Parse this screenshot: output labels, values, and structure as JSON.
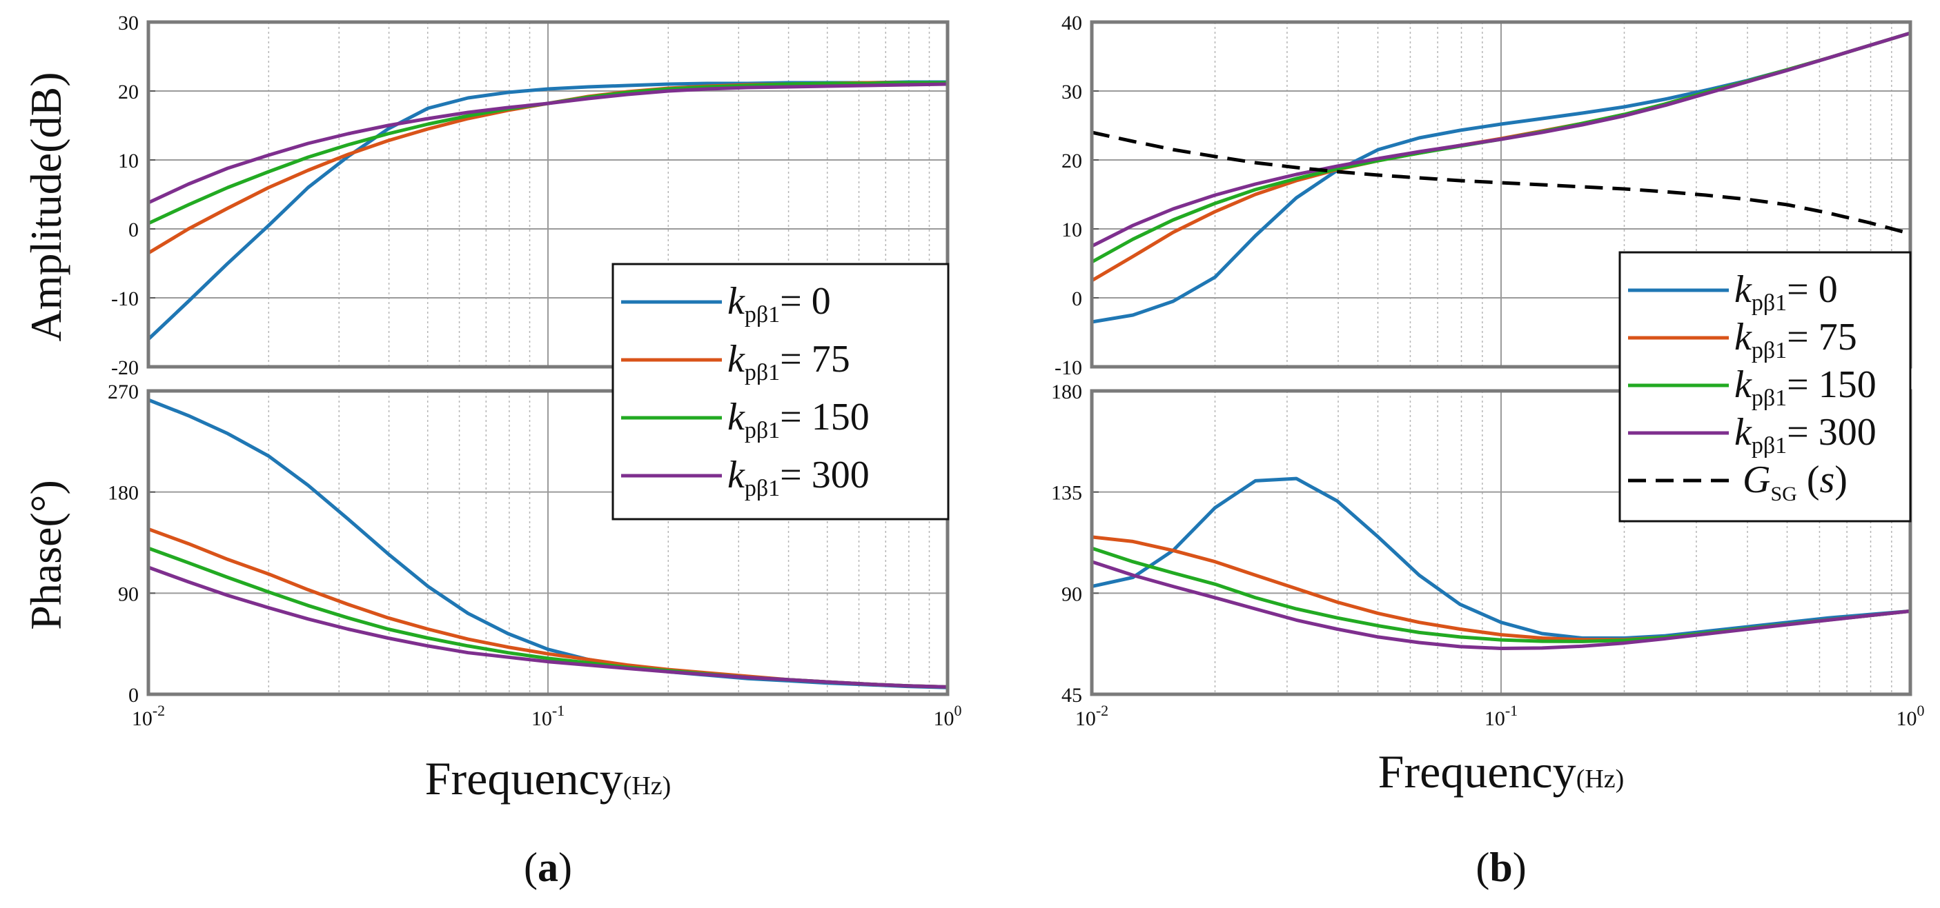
{
  "chart_data": [
    {
      "type": "line",
      "panel_label": "a",
      "xscale": "log",
      "xlim": [
        0.01,
        1
      ],
      "x_tick_labels": [
        {
          "base": "10",
          "exp": "-2"
        },
        {
          "base": "10",
          "exp": "-1"
        },
        {
          "base": "10",
          "exp": "0"
        }
      ],
      "xlabel": {
        "main": "Frequency",
        "unit": "(Hz)"
      },
      "x": [
        0.01,
        0.0126,
        0.0158,
        0.02,
        0.0251,
        0.0316,
        0.0398,
        0.0501,
        0.0631,
        0.0794,
        0.1,
        0.126,
        0.158,
        0.2,
        0.251,
        0.316,
        0.398,
        0.501,
        0.631,
        0.794,
        1.0
      ],
      "amplitude": {
        "ylabel": "Amplitude(dB)",
        "ylim": [
          -20,
          30
        ],
        "y_tick_labels": [
          "-20",
          "-10",
          "0",
          "10",
          "20",
          "30"
        ],
        "series": [
          {
            "name": "0",
            "color": "#1f77b4",
            "values": [
              -16,
              -10.5,
              -5,
              0.5,
              6,
              10.5,
              14.5,
              17.5,
              19,
              19.8,
              20.3,
              20.6,
              20.8,
              21,
              21.1,
              21.1,
              21.2,
              21.2,
              21.2,
              21.3,
              21.3
            ]
          },
          {
            "name": "75",
            "color": "#d95319",
            "values": [
              -3.5,
              0,
              3,
              6,
              8.5,
              10.8,
              12.8,
              14.5,
              16,
              17.2,
              18.2,
              19.2,
              19.9,
              20.4,
              20.7,
              20.9,
              21,
              21.1,
              21.2,
              21.2,
              21.2
            ]
          },
          {
            "name": "150",
            "color": "#22aa22",
            "values": [
              0.8,
              3.5,
              6,
              8.3,
              10.4,
              12.2,
              13.8,
              15.2,
              16.4,
              17.4,
              18.2,
              19.1,
              19.8,
              20.3,
              20.6,
              20.8,
              21,
              21.1,
              21.1,
              21.2,
              21.2
            ]
          },
          {
            "name": "300",
            "color": "#7e2f8e",
            "values": [
              3.8,
              6.5,
              8.8,
              10.7,
              12.4,
              13.8,
              15,
              16,
              16.9,
              17.6,
              18.2,
              18.9,
              19.5,
              20,
              20.3,
              20.5,
              20.6,
              20.7,
              20.8,
              20.9,
              21
            ]
          }
        ]
      },
      "phase": {
        "ylabel": "Phase(°)",
        "ylim": [
          0,
          270
        ],
        "y_tick_labels": [
          "0",
          "90",
          "180",
          "270"
        ],
        "series": [
          {
            "name": "0",
            "color": "#1f77b4",
            "values": [
              262,
              248,
              232,
              212,
              186,
              156,
              125,
              96,
              72,
              54,
              40,
              31,
              25,
              20,
              17,
              14,
              12,
              10,
              8.5,
              7,
              6
            ]
          },
          {
            "name": "75",
            "color": "#d95319",
            "values": [
              147,
              134,
              120,
              107,
              93,
              80,
              68,
              58,
              49,
              42,
              36,
              31,
              26,
              22,
              19,
              16,
              13,
              11,
              9,
              7.5,
              6.5
            ]
          },
          {
            "name": "150",
            "color": "#22aa22",
            "values": [
              130,
              117,
              104,
              91,
              79,
              68,
              58,
              50,
              43,
              37,
              32,
              28,
              24,
              21,
              18,
              15,
              13,
              11,
              9,
              7.5,
              6.5
            ]
          },
          {
            "name": "300",
            "color": "#7e2f8e",
            "values": [
              113,
              100,
              88,
              77,
              67,
              58,
              50,
              43,
              37,
              33,
              29,
              26,
              23,
              20,
              17.5,
              15,
              13,
              11,
              9,
              7.5,
              6.5
            ]
          }
        ]
      },
      "legend": {
        "placement": "right",
        "symbol": "k",
        "subscript": "pβ1",
        "entries": [
          "= 0",
          "= 75",
          "= 150",
          "= 300"
        ]
      }
    },
    {
      "type": "line",
      "panel_label": "b",
      "xscale": "log",
      "xlim": [
        0.01,
        1
      ],
      "x_tick_labels": [
        {
          "base": "10",
          "exp": "-2"
        },
        {
          "base": "10",
          "exp": "-1"
        },
        {
          "base": "10",
          "exp": "0"
        }
      ],
      "xlabel": {
        "main": "Frequency",
        "unit": "(Hz)"
      },
      "x": [
        0.01,
        0.0126,
        0.0158,
        0.02,
        0.0251,
        0.0316,
        0.0398,
        0.0501,
        0.0631,
        0.0794,
        0.1,
        0.126,
        0.158,
        0.2,
        0.251,
        0.316,
        0.398,
        0.501,
        0.631,
        0.794,
        1.0
      ],
      "amplitude": {
        "ylabel": "",
        "ylim": [
          -10,
          40
        ],
        "y_tick_labels": [
          "-10",
          "0",
          "10",
          "20",
          "30",
          "40"
        ],
        "series": [
          {
            "name": "0",
            "color": "#1f77b4",
            "values": [
              -3.5,
              -2.5,
              -0.5,
              3,
              9,
              14.5,
              18.5,
              21.5,
              23.2,
              24.3,
              25.2,
              26,
              26.8,
              27.7,
              28.8,
              30.1,
              31.5,
              33.1,
              34.8,
              36.6,
              38.4
            ]
          },
          {
            "name": "75",
            "color": "#d95319",
            "values": [
              2.5,
              6,
              9.5,
              12.5,
              15,
              17,
              18.6,
              19.9,
              21,
              22.1,
              23.1,
              24.2,
              25.3,
              26.6,
              28.1,
              29.8,
              31.4,
              33.1,
              34.8,
              36.6,
              38.4
            ]
          },
          {
            "name": "150",
            "color": "#22aa22",
            "values": [
              5.2,
              8.5,
              11.3,
              13.7,
              15.7,
              17.3,
              18.7,
              19.9,
              21,
              22,
              23,
              24.1,
              25.3,
              26.6,
              28.1,
              29.8,
              31.4,
              33.1,
              34.8,
              36.6,
              38.4
            ]
          },
          {
            "name": "300",
            "color": "#7e2f8e",
            "values": [
              7.5,
              10.5,
              12.9,
              14.9,
              16.5,
              17.9,
              19.1,
              20.2,
              21.2,
              22.1,
              23,
              24,
              25.1,
              26.4,
              27.9,
              29.6,
              31.3,
              33,
              34.8,
              36.6,
              38.4
            ]
          },
          {
            "name": "GSG(s)",
            "color": "#000000",
            "dashed": true,
            "values": [
              24,
              22.7,
              21.5,
              20.5,
              19.6,
              18.9,
              18.3,
              17.8,
              17.4,
              17,
              16.7,
              16.4,
              16.1,
              15.8,
              15.4,
              14.9,
              14.3,
              13.5,
              12.3,
              10.9,
              9.3
            ]
          }
        ]
      },
      "phase": {
        "ylabel": "",
        "ylim": [
          45,
          180
        ],
        "y_tick_labels": [
          "45",
          "90",
          "135",
          "180"
        ],
        "series": [
          {
            "name": "0",
            "color": "#1f77b4",
            "values": [
              93,
              97,
              109,
              128,
              140,
              141,
              131,
              115,
              98,
              85,
              77,
              72,
              70,
              70,
              71,
              73,
              75,
              77,
              79,
              80.5,
              82
            ]
          },
          {
            "name": "75",
            "color": "#d95319",
            "values": [
              115,
              113,
              109,
              104,
              98,
              92,
              86,
              81,
              77,
              74,
              71.5,
              70,
              69.3,
              69.3,
              70.3,
              72.2,
              74.2,
              76.2,
              78.1,
              80,
              82
            ]
          },
          {
            "name": "150",
            "color": "#22aa22",
            "values": [
              110,
              104,
              99,
              94,
              88,
              83,
              79,
              75.5,
              72.5,
              70.5,
              69.2,
              68.6,
              68.5,
              69,
              70.3,
              72.2,
              74.2,
              76.2,
              78.1,
              80,
              82
            ]
          },
          {
            "name": "300",
            "color": "#7e2f8e",
            "values": [
              104,
              98,
              93,
              88,
              83,
              78,
              74,
              70.5,
              68,
              66.2,
              65.4,
              65.6,
              66.4,
              67.8,
              69.7,
              71.8,
              73.9,
              76,
              78,
              80,
              82
            ]
          }
        ]
      },
      "legend": {
        "placement": "right",
        "symbol": "k",
        "subscript": "pβ1",
        "entries": [
          "= 0",
          "= 75",
          "= 150",
          "= 300"
        ],
        "extra_entry": {
          "symbol": "G",
          "subscript": "SG",
          "suffix": "(s)"
        }
      }
    }
  ]
}
